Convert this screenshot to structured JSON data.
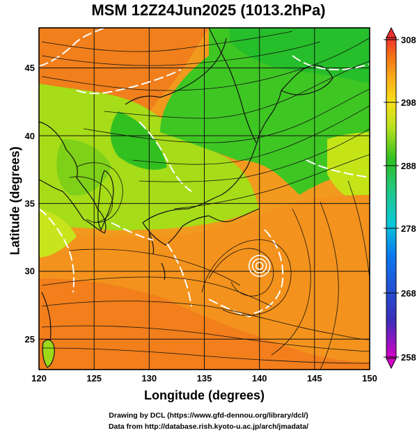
{
  "title": "MSM 12Z24Jun2025 (1013.2hPa)",
  "x_axis": {
    "label": "Longitude (degrees)",
    "range": [
      120,
      150
    ],
    "ticks": [
      "120",
      "125",
      "130",
      "135",
      "140",
      "145",
      "150"
    ]
  },
  "y_axis": {
    "label": "Latitude  (degrees)",
    "range": [
      22.4,
      47.6
    ],
    "ticks": [
      "25",
      "30",
      "35",
      "40",
      "45"
    ]
  },
  "colorbar": {
    "range": [
      258,
      308
    ],
    "ticks": [
      "308",
      "298",
      "288",
      "278",
      "268",
      "258"
    ],
    "colors": [
      "#d800c8",
      "#3a2eb8",
      "#0a78f0",
      "#08c8d8",
      "#20c888",
      "#2ec020",
      "#b8e020",
      "#f8e018",
      "#f8a818",
      "#f46a18",
      "#f0302e"
    ]
  },
  "credits": {
    "line1": "Drawing by DCL (https://www.gfd-dennou.org/library/dcl/)",
    "line2": "Data from http://database.rish.kyoto-u.ac.jp/arch/jmadata/"
  },
  "features": {
    "cyclone_center_lon": 140,
    "cyclone_center_lat": 30.7,
    "low_center_lon": 126.3,
    "low_center_lat": 35.5
  }
}
